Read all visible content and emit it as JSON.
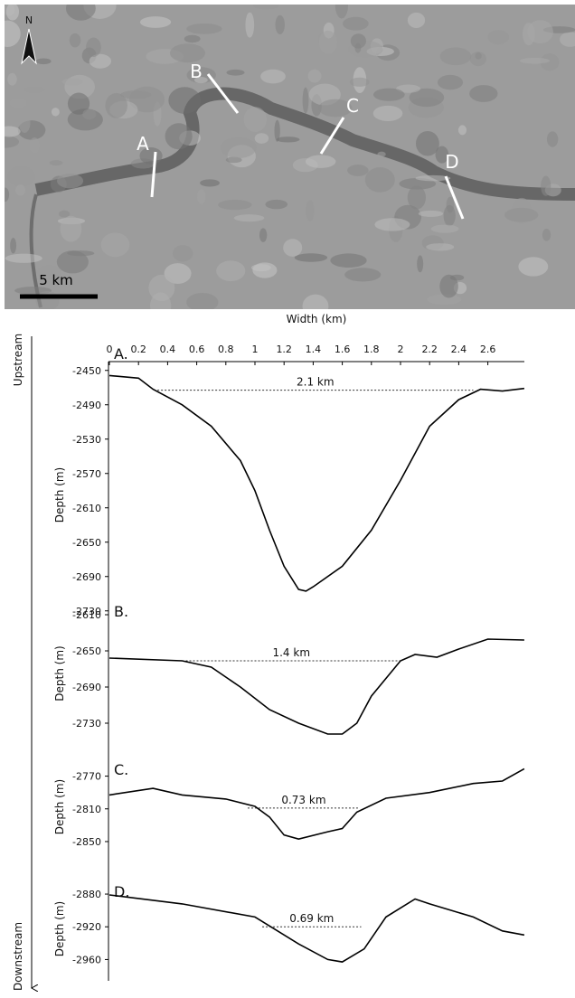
{
  "image": {
    "north": "N",
    "scale_bar": "5 km",
    "labels": [
      "A",
      "B",
      "C",
      "D"
    ]
  },
  "flow": {
    "start": "Upstream",
    "end": "Downstream"
  },
  "chart_data": [
    {
      "type": "line",
      "xlabel": "Width (km)",
      "label": "A.",
      "ylabel": "Depth (m)",
      "color": "#000000",
      "xlim": [
        0,
        2.85
      ],
      "xticks": [
        0,
        0.2,
        0.4,
        0.6,
        0.8,
        1,
        1.2,
        1.4,
        1.6,
        1.8,
        2,
        2.2,
        2.4,
        2.6
      ],
      "ylim": [
        -2745,
        -2445
      ],
      "yticks": [
        -2450,
        -2490,
        -2530,
        -2570,
        -2610,
        -2650,
        -2690,
        -2730
      ],
      "x": [
        0,
        0.2,
        0.3,
        0.5,
        0.7,
        0.9,
        1.0,
        1.1,
        1.2,
        1.3,
        1.35,
        1.4,
        1.6,
        1.8,
        2.0,
        2.2,
        2.4,
        2.55,
        2.7,
        2.85
      ],
      "values": [
        -2456,
        -2459,
        -2472,
        -2490,
        -2515,
        -2555,
        -2590,
        -2636,
        -2678,
        -2705,
        -2707,
        -2702,
        -2678,
        -2636,
        -2578,
        -2515,
        -2484,
        -2472,
        -2474,
        -2471
      ],
      "annotation": {
        "text": "2.1 km",
        "x": [
          0.33,
          2.5
        ],
        "y": -2473
      }
    },
    {
      "type": "line",
      "label": "B.",
      "ylabel": "Depth (m)",
      "color": "#000000",
      "xlim": [
        0,
        2.85
      ],
      "ylim": [
        -2750,
        -2600
      ],
      "yticks": [
        -2610,
        -2650,
        -2690,
        -2730
      ],
      "x": [
        0,
        0.5,
        0.7,
        0.9,
        1.1,
        1.3,
        1.5,
        1.6,
        1.7,
        1.8,
        2.0,
        2.1,
        2.25,
        2.4,
        2.6,
        2.85
      ],
      "values": [
        -2658,
        -2661,
        -2668,
        -2690,
        -2715,
        -2730,
        -2742,
        -2742,
        -2730,
        -2700,
        -2661,
        -2654,
        -2657,
        -2648,
        -2637,
        -2638
      ],
      "annotation": {
        "text": "1.4 km",
        "x": [
          0.5,
          2.0
        ],
        "y": -2661
      }
    },
    {
      "type": "line",
      "label": "C.",
      "ylabel": "Depth (m)",
      "color": "#000000",
      "xlim": [
        0,
        2.85
      ],
      "ylim": [
        -2860,
        -2755
      ],
      "yticks": [
        -2770,
        -2810,
        -2850
      ],
      "x": [
        0,
        0.3,
        0.5,
        0.8,
        1.0,
        1.1,
        1.2,
        1.3,
        1.5,
        1.6,
        1.7,
        1.9,
        2.2,
        2.5,
        2.7,
        2.85
      ],
      "values": [
        -2793,
        -2785,
        -2793,
        -2798,
        -2807,
        -2820,
        -2842,
        -2847,
        -2838,
        -2834,
        -2814,
        -2797,
        -2790,
        -2779,
        -2776,
        -2761
      ],
      "annotation": {
        "text": "0.73 km",
        "x": [
          0.95,
          1.72
        ],
        "y": -2809
      }
    },
    {
      "type": "line",
      "label": "D.",
      "ylabel": "Depth (m)",
      "color": "#000000",
      "xlim": [
        0,
        2.85
      ],
      "ylim": [
        -2975,
        -2870
      ],
      "yticks": [
        -2880,
        -2920,
        -2960
      ],
      "x": [
        0,
        0.5,
        1.0,
        1.1,
        1.3,
        1.5,
        1.6,
        1.75,
        1.9,
        2.1,
        2.2,
        2.5,
        2.7,
        2.85
      ],
      "values": [
        -2881,
        -2892,
        -2908,
        -2919,
        -2941,
        -2960,
        -2963,
        -2947,
        -2908,
        -2886,
        -2892,
        -2908,
        -2925,
        -2930
      ],
      "annotation": {
        "text": "0.69 km",
        "x": [
          1.05,
          1.73
        ],
        "y": -2920
      }
    }
  ]
}
